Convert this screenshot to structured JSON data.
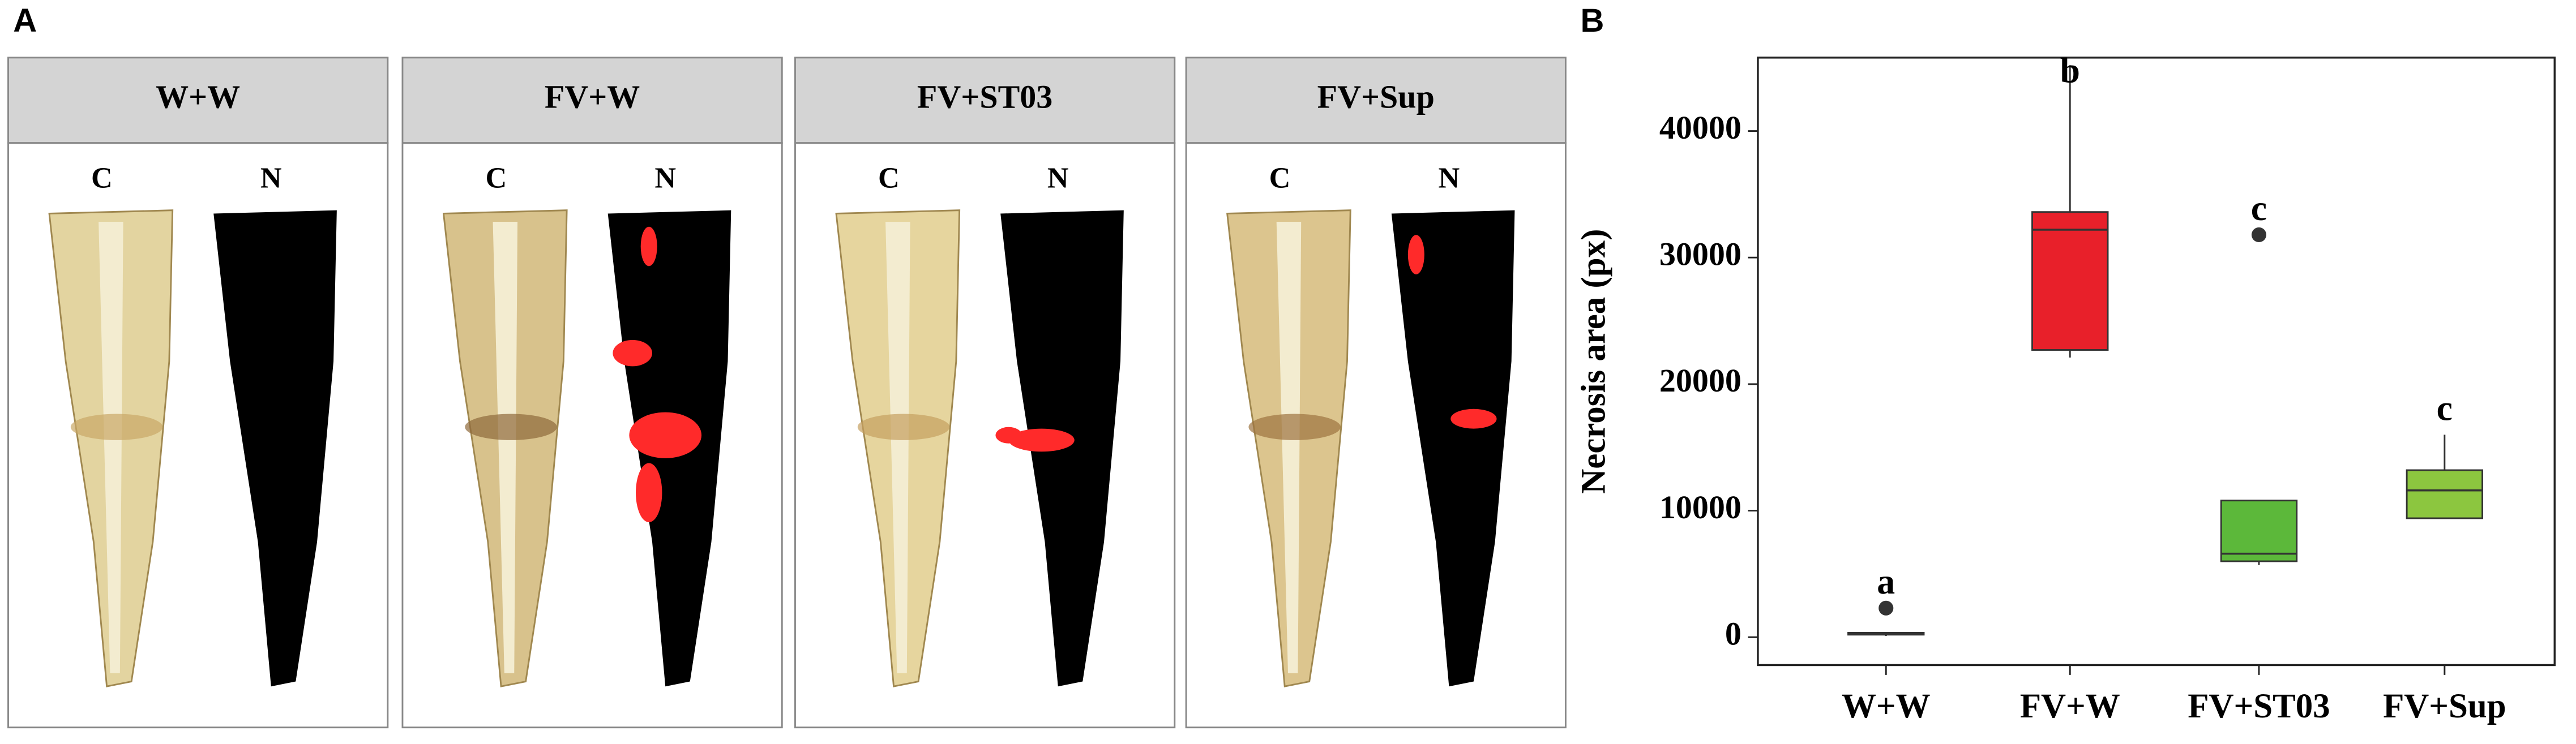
{
  "panel_labels": [
    "A",
    "B"
  ],
  "panel_a": {
    "panels": [
      {
        "title": "W+W",
        "labels": [
          "C",
          "N"
        ]
      },
      {
        "title": "FV+W",
        "labels": [
          "C",
          "N"
        ]
      },
      {
        "title": "FV+ST03",
        "labels": [
          "C",
          "N"
        ]
      },
      {
        "title": "FV+Sup",
        "labels": [
          "C",
          "N"
        ]
      }
    ]
  },
  "chart_data": {
    "type": "box",
    "ylabel": "Necrosis area (px)",
    "categories": [
      "W+W",
      "FV+W",
      "FV+ST03",
      "FV+Sup"
    ],
    "series": [
      {
        "name": "W+W",
        "color": "#333333",
        "min": 100,
        "q1": 200,
        "median": 300,
        "q3": 350,
        "max": 400,
        "outliers": [
          2300
        ],
        "letter": "a"
      },
      {
        "name": "FV+W",
        "color": "#e8202a",
        "min": 22100,
        "q1": 22700,
        "median": 32200,
        "q3": 33600,
        "max": 45200,
        "outliers": [],
        "letter": "b"
      },
      {
        "name": "FV+ST03",
        "color": "#5cb83a",
        "min": 5700,
        "q1": 6000,
        "median": 6600,
        "q3": 10800,
        "max": 10800,
        "outliers": [
          31800
        ],
        "letter": "c"
      },
      {
        "name": "FV+Sup",
        "color": "#8cc63f",
        "min": 9400,
        "q1": 9400,
        "median": 11600,
        "q3": 13200,
        "max": 16000,
        "outliers": [],
        "letter": "c"
      }
    ],
    "ylim": [
      -2200,
      45800
    ],
    "yticks": [
      0,
      10000,
      20000,
      30000,
      40000
    ]
  }
}
